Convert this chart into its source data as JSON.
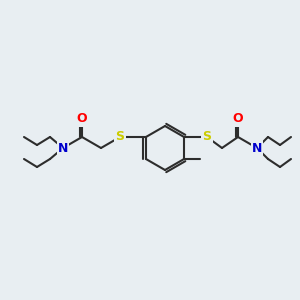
{
  "background_color": "#e8eef2",
  "bond_color": "#2d2d2d",
  "atom_colors": {
    "O": "#ff0000",
    "N": "#0000cc",
    "S": "#cccc00",
    "C": "#2d2d2d",
    "H": "#2d2d2d"
  },
  "bond_width": 1.5,
  "font_size": 9,
  "fig_size": [
    3.0,
    3.0
  ],
  "dpi": 100
}
